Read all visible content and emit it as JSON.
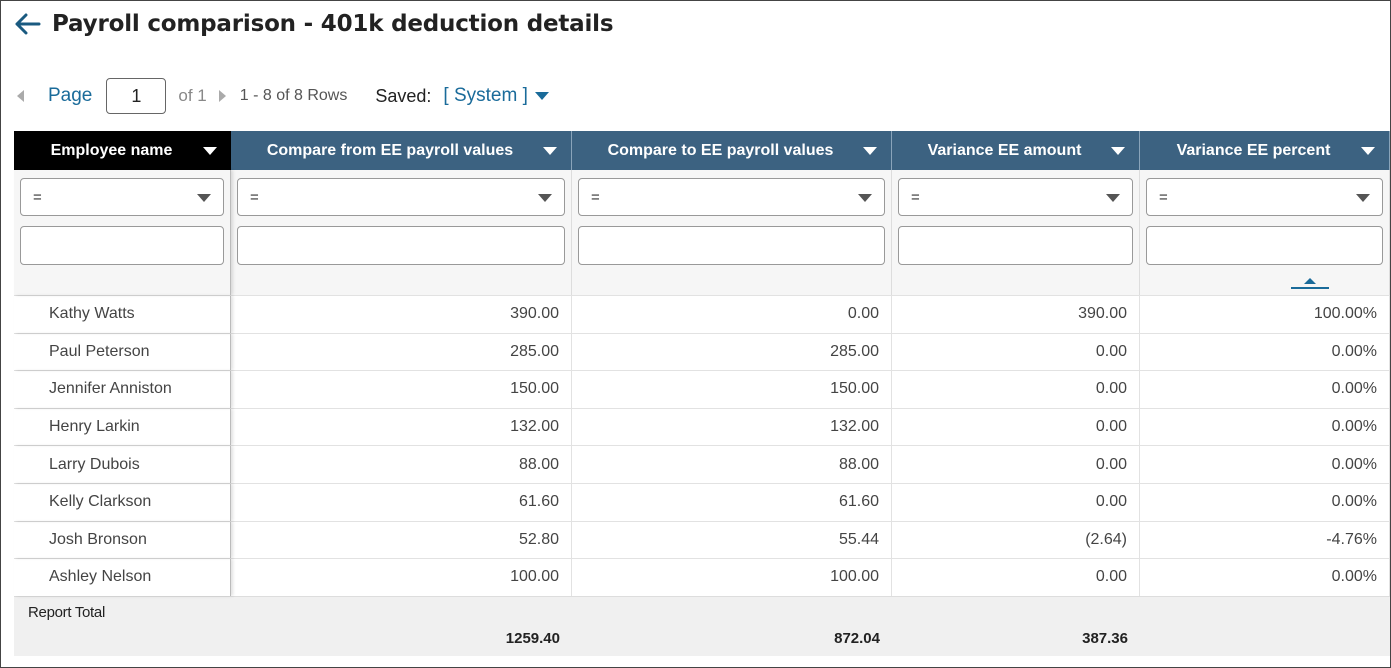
{
  "header": {
    "title": "Payroll comparison - 401k deduction details",
    "back_icon": "arrow-left-icon"
  },
  "pager": {
    "page_label": "Page",
    "page_value": "1",
    "of_label": "of 1",
    "rows_label": "1 - 8 of 8 Rows",
    "saved_label": "Saved:",
    "saved_value": "[ System ]"
  },
  "colors": {
    "accent": "#1a6b9a",
    "header_bg": "#3c6281",
    "frozen_header_bg": "#000000"
  },
  "table": {
    "columns": [
      {
        "label": "Employee name"
      },
      {
        "label": "Compare from EE payroll values"
      },
      {
        "label": "Compare to EE payroll values"
      },
      {
        "label": "Variance EE amount"
      },
      {
        "label": "Variance EE percent"
      }
    ],
    "filter_operator": "=",
    "rows": [
      [
        "Kathy Watts",
        "390.00",
        "0.00",
        "390.00",
        "100.00%"
      ],
      [
        "Paul Peterson",
        "285.00",
        "285.00",
        "0.00",
        "0.00%"
      ],
      [
        "Jennifer Anniston",
        "150.00",
        "150.00",
        "0.00",
        "0.00%"
      ],
      [
        "Henry Larkin",
        "132.00",
        "132.00",
        "0.00",
        "0.00%"
      ],
      [
        "Larry Dubois",
        "88.00",
        "88.00",
        "0.00",
        "0.00%"
      ],
      [
        "Kelly Clarkson",
        "61.60",
        "61.60",
        "0.00",
        "0.00%"
      ],
      [
        "Josh Bronson",
        "52.80",
        "55.44",
        "(2.64)",
        "-4.76%"
      ],
      [
        "Ashley Nelson",
        "100.00",
        "100.00",
        "0.00",
        "0.00%"
      ]
    ],
    "total": {
      "label": "Report Total",
      "values": [
        "1259.40",
        "872.04",
        "387.36",
        ""
      ]
    }
  }
}
